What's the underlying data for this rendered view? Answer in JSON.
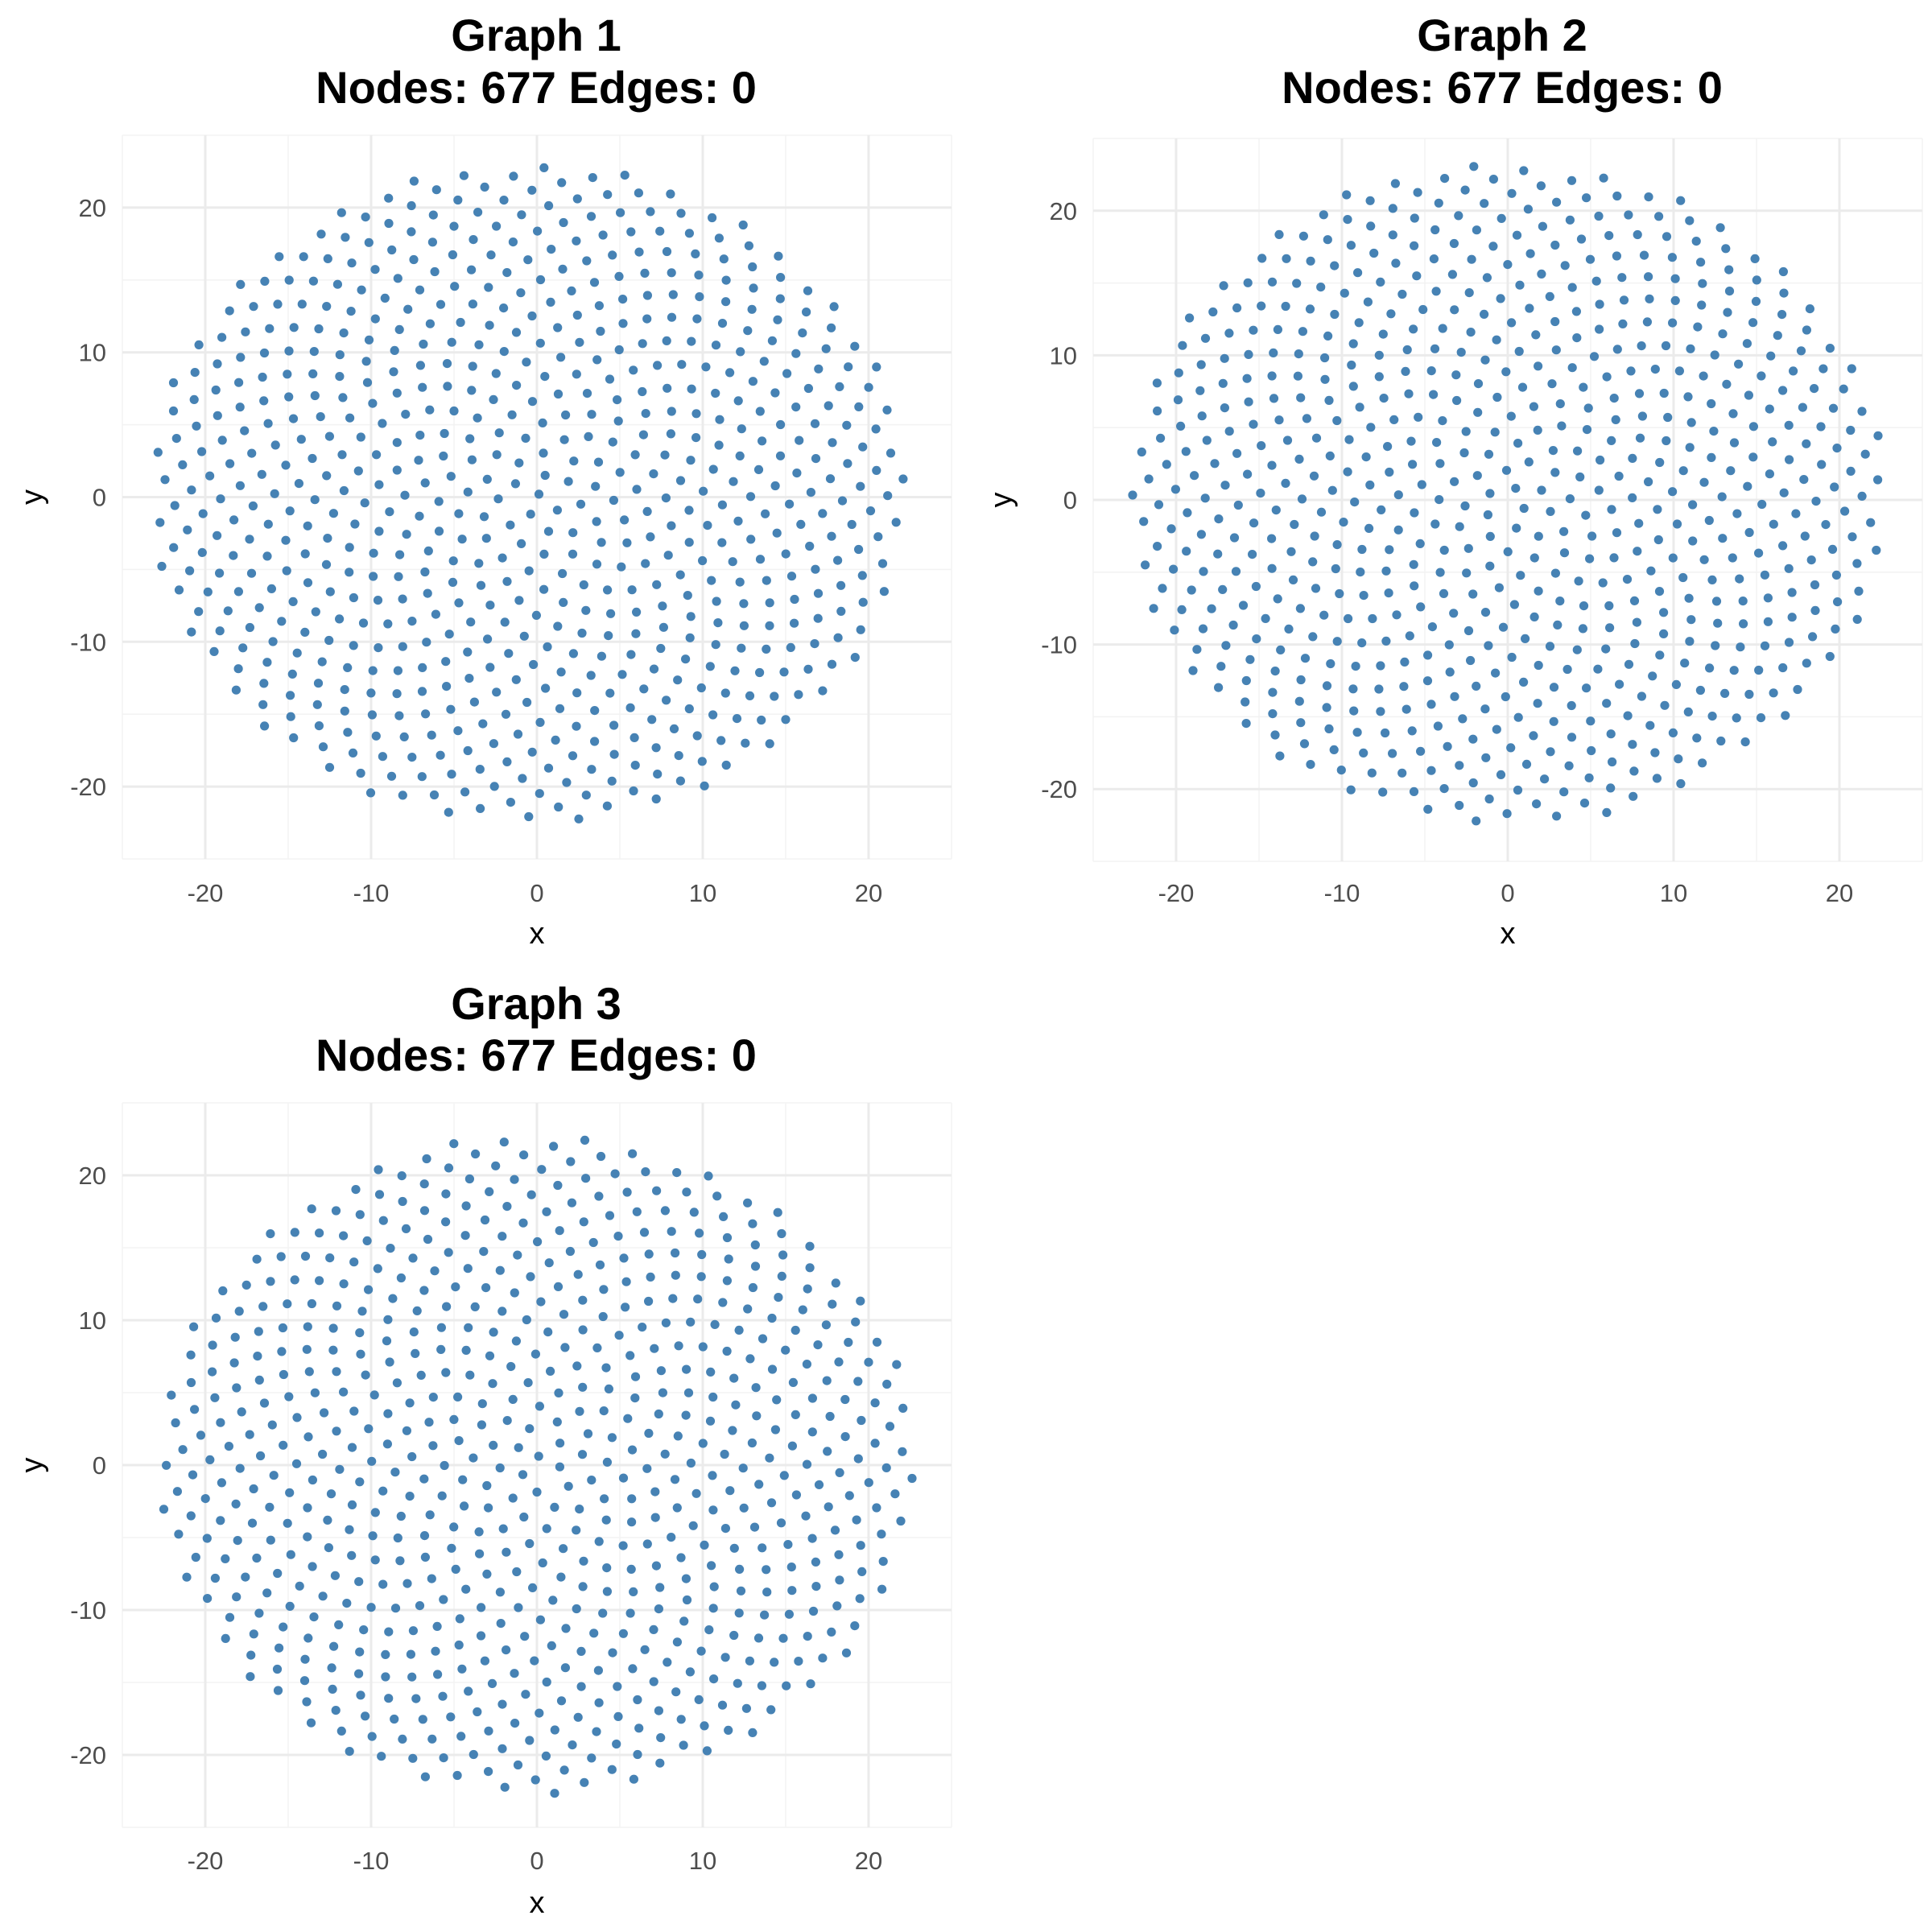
{
  "figure": {
    "point_color": "#4682b4",
    "background": "#ffffff",
    "grid_color": "#ebebeb"
  },
  "chart_data": [
    {
      "type": "scatter",
      "title": "Graph 1",
      "subtitle": "Nodes: 677 Edges: 0",
      "xlabel": "x",
      "ylabel": "y",
      "xlim": [
        -25,
        25
      ],
      "ylim": [
        -25,
        25
      ],
      "x_ticks": [
        -20,
        -10,
        0,
        10,
        20
      ],
      "y_ticks": [
        -20,
        -10,
        0,
        10,
        20
      ],
      "x_tick_labels": [
        "-20",
        "-10",
        "0",
        "10",
        "20"
      ],
      "y_tick_labels": [
        "-20",
        "-10",
        "0",
        "10",
        "20"
      ],
      "grid": true,
      "nodes": 677,
      "edges": 0,
      "layout": "disk",
      "layout_extent": {
        "x": [
          -23.3,
          22.3
        ],
        "y": [
          -22.6,
          23.0
        ]
      },
      "rotation_deg": 0
    },
    {
      "type": "scatter",
      "title": "Graph 2",
      "subtitle": "Nodes: 677 Edges: 0",
      "xlabel": "x",
      "ylabel": "y",
      "xlim": [
        -25,
        25
      ],
      "ylim": [
        -25,
        25
      ],
      "x_ticks": [
        -20,
        -10,
        0,
        10,
        20
      ],
      "y_ticks": [
        -20,
        -10,
        0,
        10,
        20
      ],
      "x_tick_labels": [
        "-20",
        "-10",
        "0",
        "10",
        "20"
      ],
      "y_tick_labels": [
        "-20",
        "-10",
        "0",
        "10",
        "20"
      ],
      "grid": true,
      "nodes": 677,
      "edges": 0,
      "layout": "disk",
      "layout_extent": {
        "x": [
          -22.8,
          22.8
        ],
        "y": [
          -22.5,
          23.3
        ]
      },
      "rotation_deg": 40
    },
    {
      "type": "scatter",
      "title": "Graph 3",
      "subtitle": "Nodes: 677 Edges: 0",
      "xlabel": "x",
      "ylabel": "y",
      "xlim": [
        -25,
        25
      ],
      "ylim": [
        -25,
        25
      ],
      "x_ticks": [
        -20,
        -10,
        0,
        10,
        20
      ],
      "y_ticks": [
        -20,
        -10,
        0,
        10,
        20
      ],
      "x_tick_labels": [
        "-20",
        "-10",
        "0",
        "10",
        "20"
      ],
      "y_tick_labels": [
        "-20",
        "-10",
        "0",
        "10",
        "20"
      ],
      "grid": true,
      "nodes": 677,
      "edges": 0,
      "layout": "disk",
      "layout_extent": {
        "x": [
          -22.8,
          22.8
        ],
        "y": [
          -22.8,
          22.8
        ]
      },
      "rotation_deg": 80
    }
  ]
}
